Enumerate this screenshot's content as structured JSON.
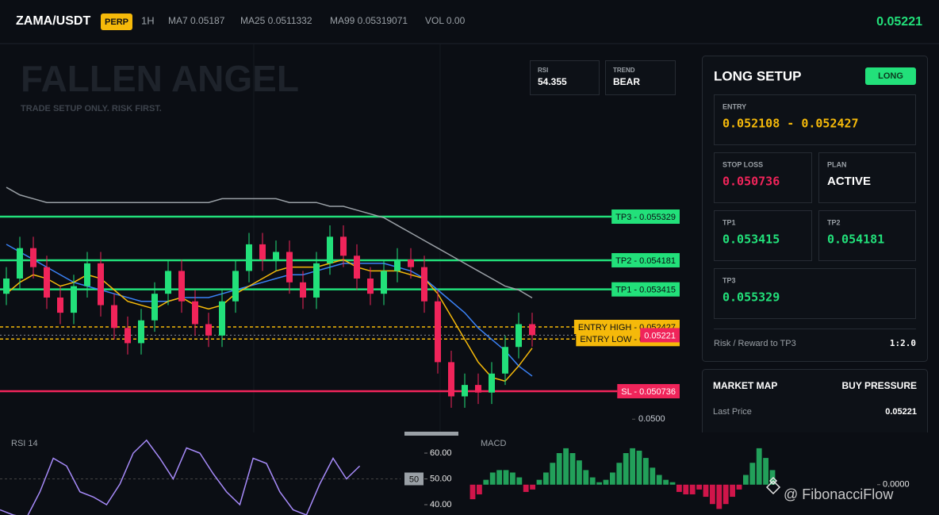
{
  "header": {
    "symbol": "ZAMA/USDT",
    "badge": "PERP",
    "interval": "1H",
    "ma7": "MA7 0.05187",
    "ma25": "MA25 0.0511332",
    "ma99": "MA99 0.05319071",
    "volume": "VOL 0.00",
    "last_price": "0.05221"
  },
  "overlay": {
    "title": "FALLEN ANGEL",
    "subtitle": "TRADE SETUP ONLY. RISK FIRST.",
    "rsi_label": "RSI",
    "rsi_value": "54.355",
    "trend_label": "TREND",
    "trend_value": "BEAR"
  },
  "chart_data": [
    {
      "type": "candlestick",
      "up_color": "#22e07a",
      "down_color": "#f0245a",
      "open": [
        0.0533,
        0.0537,
        0.0545,
        0.054,
        0.0532,
        0.0528,
        0.0535,
        0.0541,
        0.053,
        0.0524,
        0.052,
        0.0526,
        0.0533,
        0.0539,
        0.0531,
        0.0525,
        0.0522,
        0.0531,
        0.0539,
        0.0546,
        0.0542,
        0.0544,
        0.0536,
        0.0532,
        0.0541,
        0.0548,
        0.0543,
        0.0537,
        0.0533,
        0.0539,
        0.0542,
        0.054,
        0.0531,
        0.0515,
        0.0506,
        0.0509,
        0.0507,
        0.0512,
        0.0519,
        0.0525
      ],
      "high": [
        0.054,
        0.0548,
        0.0548,
        0.0543,
        0.0535,
        0.0538,
        0.0544,
        0.0544,
        0.0533,
        0.0527,
        0.0529,
        0.0536,
        0.0542,
        0.0542,
        0.0534,
        0.0528,
        0.0534,
        0.0542,
        0.0549,
        0.0549,
        0.0547,
        0.0547,
        0.0539,
        0.0544,
        0.0551,
        0.0551,
        0.0546,
        0.054,
        0.0542,
        0.0545,
        0.0545,
        0.0543,
        0.0534,
        0.0518,
        0.0512,
        0.0512,
        0.0515,
        0.0522,
        0.0528,
        0.0528
      ],
      "low": [
        0.053,
        0.0534,
        0.0537,
        0.0529,
        0.0525,
        0.0525,
        0.0532,
        0.0527,
        0.0521,
        0.0517,
        0.0517,
        0.0523,
        0.053,
        0.0528,
        0.0522,
        0.0519,
        0.0519,
        0.0528,
        0.0536,
        0.0539,
        0.0539,
        0.0533,
        0.0529,
        0.0529,
        0.0538,
        0.054,
        0.0534,
        0.053,
        0.053,
        0.0536,
        0.0537,
        0.0528,
        0.0512,
        0.0503,
        0.0503,
        0.0504,
        0.0504,
        0.0509,
        0.0516,
        0.05191
      ],
      "close": [
        0.0537,
        0.0545,
        0.054,
        0.0532,
        0.0528,
        0.0535,
        0.0541,
        0.053,
        0.0524,
        0.052,
        0.0526,
        0.0533,
        0.0539,
        0.0531,
        0.0525,
        0.0522,
        0.0531,
        0.0539,
        0.0546,
        0.0542,
        0.0544,
        0.0536,
        0.0532,
        0.0541,
        0.0548,
        0.0543,
        0.0537,
        0.0533,
        0.0539,
        0.0542,
        0.054,
        0.0531,
        0.0515,
        0.0506,
        0.0509,
        0.0507,
        0.0512,
        0.0519,
        0.0525,
        0.05221
      ],
      "lines": [
        {
          "color": "#9aa0a6",
          "values": [
            0.0561,
            0.0559,
            0.0558,
            0.0557,
            0.0557,
            0.0557,
            0.0557,
            0.0557,
            0.0557,
            0.0557,
            0.0557,
            0.0557,
            0.0557,
            0.0557,
            0.0557,
            0.0557,
            0.0558,
            0.0558,
            0.0558,
            0.0558,
            0.0558,
            0.0557,
            0.0557,
            0.0557,
            0.0556,
            0.0556,
            0.0555,
            0.0554,
            0.0553,
            0.0551,
            0.0549,
            0.0547,
            0.0545,
            0.0543,
            0.0541,
            0.0539,
            0.0537,
            0.0535,
            0.0534,
            0.05319071
          ]
        },
        {
          "color": "#3b82f6",
          "values": [
            0.0546,
            0.0544,
            0.0542,
            0.054,
            0.0538,
            0.0536,
            0.0535,
            0.0534,
            0.0533,
            0.0532,
            0.0531,
            0.0531,
            0.0531,
            0.0532,
            0.0532,
            0.0532,
            0.0533,
            0.0534,
            0.0535,
            0.0536,
            0.0537,
            0.0538,
            0.0538,
            0.0539,
            0.054,
            0.0541,
            0.0541,
            0.0541,
            0.0541,
            0.054,
            0.0539,
            0.0537,
            0.0534,
            0.0531,
            0.0528,
            0.0524,
            0.0521,
            0.0518,
            0.0514,
            0.0511332
          ]
        },
        {
          "color": "#f5b90a",
          "values": [
            0.0533,
            0.0536,
            0.0538,
            0.0537,
            0.0535,
            0.0536,
            0.0538,
            0.0537,
            0.0534,
            0.0531,
            0.053,
            0.0529,
            0.0531,
            0.0532,
            0.053,
            0.0529,
            0.053,
            0.0533,
            0.0535,
            0.0537,
            0.0539,
            0.054,
            0.054,
            0.054,
            0.0541,
            0.0542,
            0.054,
            0.0539,
            0.0539,
            0.0539,
            0.0538,
            0.0537,
            0.0533,
            0.0527,
            0.0521,
            0.0515,
            0.0511,
            0.051,
            0.0514,
            0.05187
          ]
        }
      ],
      "levels": [
        {
          "text": "TP3 - 0.055329",
          "value": 0.055329,
          "color": "#22e07a"
        },
        {
          "text": "TP2 - 0.054181",
          "value": 0.054181,
          "color": "#22e07a"
        },
        {
          "text": "TP1 - 0.053415",
          "value": 0.053415,
          "color": "#22e07a"
        },
        {
          "text": "ENTRY HIGH - 0.052427",
          "value": 0.052427,
          "color": "#f5b90a",
          "dashed": true
        },
        {
          "text": "ENTRY LOW - 0.052108",
          "value": 0.052108,
          "color": "#f5b90a",
          "dashed": true
        },
        {
          "text": "SL - 0.050736",
          "value": 0.050736,
          "color": "#f0245a"
        }
      ],
      "price_tag": {
        "text": "0.05221",
        "value": 0.05221,
        "color": "#f0245a"
      },
      "ylim": [
        0.04965,
        0.05988
      ],
      "yticks": [
        {
          "value": 0.05,
          "label": "0.0500"
        }
      ]
    },
    {
      "type": "line",
      "title": "RSI 14",
      "color": "#a78bfa",
      "values": [
        38,
        36,
        35,
        45,
        58,
        55,
        45,
        43,
        40,
        48,
        60,
        65,
        58,
        50,
        62,
        60,
        52,
        45,
        40,
        58,
        56,
        45,
        38,
        36,
        48,
        58,
        50,
        55
      ],
      "marker": 50,
      "ylim": [
        36,
        68
      ],
      "yticks": [
        {
          "value": 40,
          "label": "40.00"
        },
        {
          "value": 50,
          "label": "50.00"
        },
        {
          "value": 60,
          "label": "60.00"
        }
      ]
    },
    {
      "type": "bar",
      "title": "MACD",
      "up_color": "#22a05a",
      "down_color": "#d0154a",
      "values": [
        -0.00012,
        -8e-05,
        4e-05,
        0.0001,
        0.00012,
        0.00012,
        0.0001,
        6e-05,
        -6e-05,
        -4e-05,
        4e-05,
        0.0001,
        0.00018,
        0.00026,
        0.0003,
        0.00026,
        0.0002,
        0.00012,
        6e-05,
        2e-05,
        4e-05,
        0.0001,
        0.00018,
        0.00026,
        0.0003,
        0.00028,
        0.00022,
        0.00014,
        8e-05,
        4e-05,
        2e-05,
        -6e-05,
        -8e-05,
        -8e-05,
        -4e-05,
        -0.0001,
        -0.00016,
        -0.0002,
        -0.00016,
        -0.0001,
        -4e-05,
        8e-05,
        0.00018,
        0.0003,
        0.00022,
        0.00012
      ],
      "ylim": [
        -0.00025,
        0.00043
      ],
      "yticks": [
        {
          "value": 0,
          "label": "0.0000"
        }
      ]
    }
  ],
  "setup": {
    "title": "LONG SETUP",
    "badge": "LONG",
    "entry": {
      "label": "ENTRY",
      "value": "0.052108 - 0.052427"
    },
    "stop_loss": {
      "label": "STOP LOSS",
      "value": "0.050736"
    },
    "plan": {
      "label": "PLAN",
      "value": "ACTIVE"
    },
    "tp1": {
      "label": "TP1",
      "value": "0.053415"
    },
    "tp2": {
      "label": "TP2",
      "value": "0.054181"
    },
    "tp3": {
      "label": "TP3",
      "value": "0.055329"
    },
    "rr_label": "Risk / Reward to TP3",
    "rr_value": "1:2.0"
  },
  "market_map": {
    "title": "MARKET MAP",
    "status": "BUY PRESSURE",
    "last_price_label": "Last Price",
    "last_price": "0.05221"
  },
  "watermark": "@ FibonacciFlow"
}
